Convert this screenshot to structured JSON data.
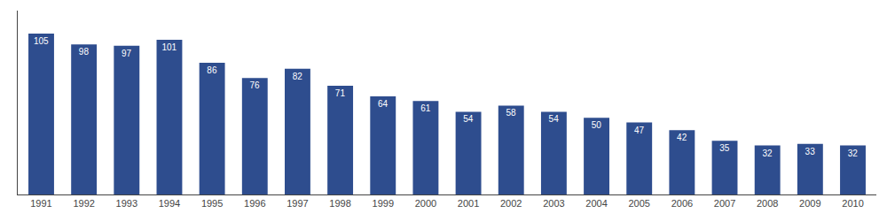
{
  "chart_data": {
    "type": "bar",
    "x": [
      1991,
      1992,
      1993,
      1994,
      1995,
      1996,
      1997,
      1998,
      1999,
      2000,
      2001,
      2002,
      2003,
      2004,
      2005,
      2006,
      2007,
      2008,
      2009,
      2010
    ],
    "values": [
      105,
      98,
      97,
      101,
      86,
      76,
      82,
      71,
      64,
      61,
      54,
      58,
      54,
      50,
      47,
      42,
      35,
      32,
      33,
      32
    ],
    "color": "#2e4d8e",
    "xlim": [
      1990.45,
      2010.55
    ],
    "xticks": [
      1991,
      1992,
      1993,
      1994,
      1995,
      1996,
      1997,
      1998,
      1999,
      2000,
      2001,
      2002,
      2003,
      2004,
      2005,
      2006,
      2007,
      2008,
      2009,
      2010
    ],
    "ylim": [
      0,
      120
    ],
    "tick_labels": "x",
    "data_labels": true,
    "grid": false
  }
}
